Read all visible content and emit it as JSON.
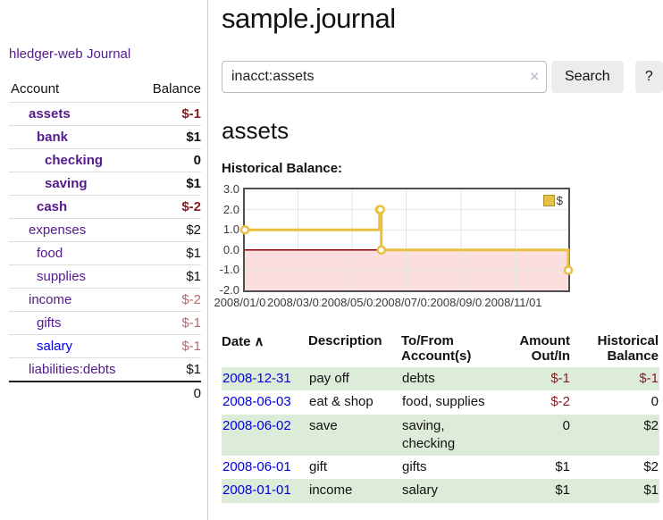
{
  "sidebar": {
    "brand": "hledger-web",
    "journal_link": "Journal",
    "accounts": {
      "col_account": "Account",
      "col_balance": "Balance",
      "rows": [
        {
          "name": "assets",
          "balance": "$-1",
          "depth": 0,
          "bold": true
        },
        {
          "name": "bank",
          "balance": "$1",
          "depth": 1,
          "bold": true
        },
        {
          "name": "checking",
          "balance": "0",
          "depth": 2,
          "bold": true
        },
        {
          "name": "saving",
          "balance": "$1",
          "depth": 2,
          "bold": true
        },
        {
          "name": "cash",
          "balance": "$-2",
          "depth": 1,
          "bold": true
        },
        {
          "name": "expenses",
          "balance": "$2",
          "depth": 0,
          "bold": false
        },
        {
          "name": "food",
          "balance": "$1",
          "depth": 1,
          "bold": false
        },
        {
          "name": "supplies",
          "balance": "$1",
          "depth": 1,
          "bold": false
        },
        {
          "name": "income",
          "balance": "$-2",
          "depth": 0,
          "bold": false
        },
        {
          "name": "gifts",
          "balance": "$-1",
          "depth": 1,
          "bold": false
        },
        {
          "name": "salary",
          "balance": "$-1",
          "depth": 1,
          "bold": false,
          "unvisited": true
        },
        {
          "name": "liabilities:debts",
          "balance": "$1",
          "depth": 0,
          "bold": false
        }
      ],
      "total": "0"
    }
  },
  "main": {
    "title": "sample.journal",
    "search": {
      "value": "inacct:assets",
      "clear_icon": "×",
      "search_button": "Search",
      "help_button": "?"
    },
    "account_heading": "assets",
    "section_label": "Historical Balance:"
  },
  "chart_data": {
    "type": "line",
    "series": [
      {
        "name": "$",
        "color": "#e8c042",
        "steps": true,
        "points": [
          [
            "2008/01/01",
            1
          ],
          [
            "2008/06/01",
            2
          ],
          [
            "2008/06/02",
            2
          ],
          [
            "2008/06/03",
            0
          ],
          [
            "2008/12/31",
            -1
          ]
        ]
      }
    ],
    "x_range": [
      "2008/01/01",
      "2008/12/31"
    ],
    "ylim": [
      -2,
      3
    ],
    "y_ticks": [
      {
        "v": 3,
        "label": "3.0"
      },
      {
        "v": 2,
        "label": "2.0"
      },
      {
        "v": 1,
        "label": "1.0"
      },
      {
        "v": 0,
        "label": "0.0"
      },
      {
        "v": -1,
        "label": "-1.0"
      },
      {
        "v": -2,
        "label": "-2.0"
      }
    ],
    "x_ticks": [
      "2008/01/01",
      "2008/03/01",
      "2008/05/01",
      "2008/07/01",
      "2008/09/01",
      "2008/11/01"
    ],
    "grid": true,
    "grid_color": "#e4e4e4",
    "legend": {
      "position": "top-right",
      "items": [
        {
          "label": "$",
          "color": "#e8c042"
        }
      ]
    },
    "negative_region": {
      "color": "#fbdede",
      "zero_line_color": "#8b0000"
    }
  },
  "register": {
    "columns": {
      "date": "Date",
      "sort_icon": "∧",
      "description": "Description",
      "tofrom": "To/From Account(s)",
      "amount": "Amount Out/In",
      "balance": "Historical Balance"
    },
    "rows": [
      {
        "date": "2008-12-31",
        "description": "pay off",
        "accounts": "debts",
        "amount": "$-1",
        "balance": "$-1"
      },
      {
        "date": "2008-06-03",
        "description": "eat & shop",
        "accounts": "food, supplies",
        "amount": "$-2",
        "balance": "0"
      },
      {
        "date": "2008-06-02",
        "description": "save",
        "accounts": "saving, checking",
        "amount": "0",
        "balance": "$2"
      },
      {
        "date": "2008-06-01",
        "description": "gift",
        "accounts": "gifts",
        "amount": "$1",
        "balance": "$2"
      },
      {
        "date": "2008-01-01",
        "description": "income",
        "accounts": "salary",
        "amount": "$1",
        "balance": "$1"
      }
    ]
  }
}
